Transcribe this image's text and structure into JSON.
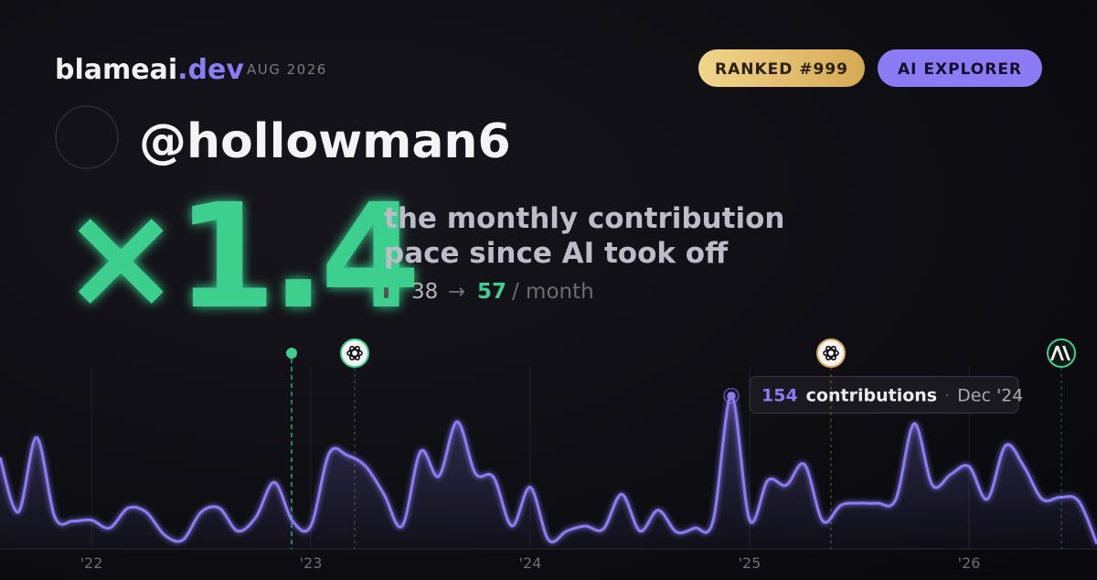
{
  "header": {
    "brand": "blameai",
    "brand_tld": ".dev",
    "date": "AUG 2026",
    "badges": [
      "RANKED #999",
      "AI EXPLORER"
    ]
  },
  "profile": {
    "handle": "@hollowman6"
  },
  "headline": {
    "multiplier": "×1.4",
    "tagline": [
      "the monthly contribution",
      "pace since AI took off"
    ],
    "pace_before": 38,
    "arrow": "→",
    "pace_after": 57,
    "pace_unit": "/ month"
  },
  "chart_data": {
    "type": "line",
    "categories": [
      null,
      null,
      null,
      null,
      null,
      "'22",
      null,
      null,
      null,
      null,
      null,
      null,
      null,
      null,
      null,
      null,
      null,
      "'23",
      null,
      null,
      null,
      null,
      null,
      null,
      null,
      null,
      null,
      null,
      null,
      "'24",
      null,
      null,
      null,
      null,
      null,
      null,
      null,
      null,
      null,
      null,
      null,
      "'25",
      null,
      null,
      null,
      null,
      null,
      null,
      null,
      null,
      null,
      null,
      null,
      "'26",
      null,
      null,
      null,
      null,
      null,
      null,
      null
    ],
    "series": [
      {
        "name": "contributions",
        "color": "#8b7cf6",
        "values": [
          92,
          37,
          112,
          32,
          28,
          29,
          21,
          41,
          37,
          14,
          9,
          37,
          41,
          18,
          32,
          67,
          28,
          23,
          96,
          94,
          83,
          55,
          23,
          98,
          73,
          128,
          76,
          72,
          23,
          62,
          9,
          18,
          23,
          20,
          55,
          18,
          39,
          17,
          21,
          28,
          154,
          29,
          69,
          64,
          85,
          28,
          44,
          46,
          46,
          50,
          126,
          64,
          75,
          83,
          50,
          104,
          83,
          50,
          52,
          48,
          5
        ]
      }
    ],
    "ylim": [
      0,
      184
    ],
    "annotation": {
      "point": 40,
      "label": "contributions",
      "date": "Dec '24"
    }
  }
}
